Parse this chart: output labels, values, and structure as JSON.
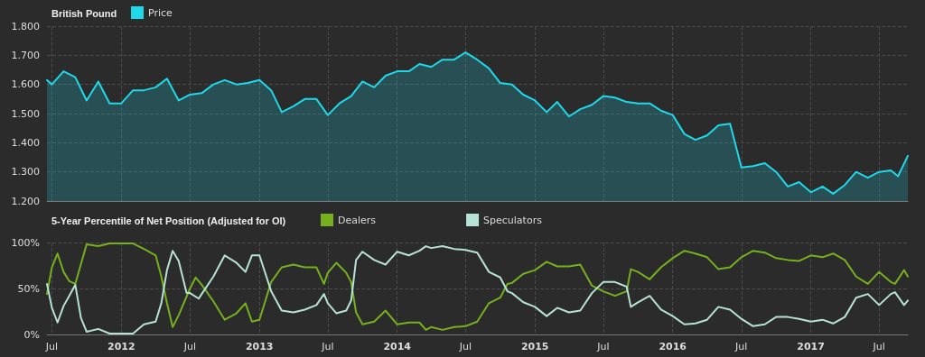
{
  "chart_data": [
    {
      "type": "area",
      "title": "British Pound",
      "legend": "top left",
      "grid": true,
      "marker": "none",
      "line_style": "solid",
      "tick_labels": "y",
      "xlim": [
        "2011-06-18",
        "2017-09-15"
      ],
      "xticks": [
        {
          "value": "2011-07-01",
          "label": null
        },
        {
          "value": "2012-01-01",
          "label": null
        },
        {
          "value": "2012-07-01",
          "label": null
        },
        {
          "value": "2013-01-01",
          "label": null
        },
        {
          "value": "2013-07-01",
          "label": null
        },
        {
          "value": "2014-01-01",
          "label": null
        },
        {
          "value": "2014-07-01",
          "label": null
        },
        {
          "value": "2015-01-01",
          "label": null
        },
        {
          "value": "2015-07-01",
          "label": null
        },
        {
          "value": "2016-01-01",
          "label": null
        },
        {
          "value": "2016-07-01",
          "label": null
        },
        {
          "value": "2017-01-01",
          "label": null
        },
        {
          "value": "2017-07-01",
          "label": null
        }
      ],
      "ylim": [
        1.2,
        1.8
      ],
      "yticks": [
        {
          "value": 1.2,
          "label": "1.200"
        },
        {
          "value": 1.3,
          "label": "1.300"
        },
        {
          "value": 1.4,
          "label": "1.400"
        },
        {
          "value": 1.5,
          "label": "1.500"
        },
        {
          "value": 1.6,
          "label": "1.600"
        },
        {
          "value": 1.7,
          "label": "1.700"
        },
        {
          "value": 1.8,
          "label": "1.800"
        }
      ],
      "series": [
        {
          "name": "Price",
          "color": "#1fd8ea",
          "x": [
            "2011-06-18",
            "2011-07-01",
            "2011-08-01",
            "2011-09-01",
            "2011-10-01",
            "2011-11-01",
            "2011-12-01",
            "2012-01-01",
            "2012-02-01",
            "2012-03-01",
            "2012-04-01",
            "2012-05-01",
            "2012-06-01",
            "2012-07-01",
            "2012-08-01",
            "2012-09-01",
            "2012-10-01",
            "2012-11-01",
            "2012-12-01",
            "2013-01-01",
            "2013-02-01",
            "2013-03-01",
            "2013-04-01",
            "2013-05-01",
            "2013-06-01",
            "2013-07-01",
            "2013-08-01",
            "2013-09-01",
            "2013-10-01",
            "2013-11-01",
            "2013-12-01",
            "2014-01-01",
            "2014-02-01",
            "2014-03-01",
            "2014-04-01",
            "2014-05-01",
            "2014-06-01",
            "2014-07-01",
            "2014-08-01",
            "2014-09-01",
            "2014-10-01",
            "2014-11-01",
            "2014-12-01",
            "2015-01-01",
            "2015-02-01",
            "2015-03-01",
            "2015-04-01",
            "2015-05-01",
            "2015-06-01",
            "2015-07-01",
            "2015-08-01",
            "2015-09-01",
            "2015-10-01",
            "2015-11-01",
            "2015-12-01",
            "2016-01-01",
            "2016-02-01",
            "2016-03-01",
            "2016-04-01",
            "2016-05-01",
            "2016-06-01",
            "2016-07-01",
            "2016-08-01",
            "2016-09-01",
            "2016-10-01",
            "2016-11-01",
            "2016-12-01",
            "2017-01-01",
            "2017-02-01",
            "2017-03-01",
            "2017-04-01",
            "2017-05-01",
            "2017-06-01",
            "2017-07-01",
            "2017-08-01",
            "2017-08-20",
            "2017-09-15"
          ],
          "values": [
            1.615,
            1.6,
            1.645,
            1.625,
            1.545,
            1.61,
            1.535,
            1.535,
            1.58,
            1.58,
            1.59,
            1.62,
            1.545,
            1.565,
            1.57,
            1.6,
            1.615,
            1.6,
            1.605,
            1.615,
            1.58,
            1.505,
            1.525,
            1.55,
            1.55,
            1.495,
            1.535,
            1.56,
            1.61,
            1.59,
            1.63,
            1.645,
            1.645,
            1.67,
            1.66,
            1.685,
            1.685,
            1.71,
            1.685,
            1.655,
            1.605,
            1.6,
            1.565,
            1.545,
            1.505,
            1.54,
            1.49,
            1.515,
            1.53,
            1.56,
            1.555,
            1.54,
            1.535,
            1.535,
            1.51,
            1.495,
            1.43,
            1.41,
            1.425,
            1.46,
            1.465,
            1.315,
            1.32,
            1.33,
            1.3,
            1.25,
            1.265,
            1.23,
            1.25,
            1.225,
            1.255,
            1.3,
            1.28,
            1.3,
            1.305,
            1.285,
            1.355
          ]
        }
      ]
    },
    {
      "type": "line",
      "title": "5-Year Percentile of Net Position (Adjusted for OI)",
      "legend": "top left",
      "grid": true,
      "marker": "none",
      "line_style": "solid",
      "xlim": [
        "2011-06-18",
        "2017-09-15"
      ],
      "xticks": [
        {
          "value": "2011-07-01",
          "label": "Jul"
        },
        {
          "value": "2012-01-01",
          "label": "2012"
        },
        {
          "value": "2012-07-01",
          "label": "Jul"
        },
        {
          "value": "2013-01-01",
          "label": "2013"
        },
        {
          "value": "2013-07-01",
          "label": "Jul"
        },
        {
          "value": "2014-01-01",
          "label": "2014"
        },
        {
          "value": "2014-07-01",
          "label": "Jul"
        },
        {
          "value": "2015-01-01",
          "label": "2015"
        },
        {
          "value": "2015-07-01",
          "label": "Jul"
        },
        {
          "value": "2016-01-01",
          "label": "2016"
        },
        {
          "value": "2016-07-01",
          "label": "Jul"
        },
        {
          "value": "2017-01-01",
          "label": "2017"
        },
        {
          "value": "2017-07-01",
          "label": "Jul"
        }
      ],
      "ylim": [
        0,
        100
      ],
      "yticks": [
        {
          "value": 0,
          "label": "0%"
        },
        {
          "value": 50,
          "label": "50%"
        },
        {
          "value": 100,
          "label": "100%"
        }
      ],
      "series": [
        {
          "name": "Dealers",
          "color": "#76b01e",
          "x": [
            "2011-06-18",
            "2011-07-01",
            "2011-07-16",
            "2011-08-01",
            "2011-08-16",
            "2011-09-01",
            "2011-10-01",
            "2011-11-01",
            "2011-12-01",
            "2012-01-01",
            "2012-02-01",
            "2012-03-01",
            "2012-04-01",
            "2012-04-16",
            "2012-05-01",
            "2012-05-16",
            "2012-06-01",
            "2012-07-01",
            "2012-07-16",
            "2012-08-01",
            "2012-09-01",
            "2012-10-01",
            "2012-11-01",
            "2012-11-25",
            "2012-12-12",
            "2013-01-01",
            "2013-02-01",
            "2013-03-01",
            "2013-04-01",
            "2013-05-01",
            "2013-06-01",
            "2013-06-21",
            "2013-07-01",
            "2013-07-24",
            "2013-08-19",
            "2013-09-01",
            "2013-09-14",
            "2013-10-01",
            "2013-11-01",
            "2013-12-01",
            "2014-01-01",
            "2014-02-01",
            "2014-03-01",
            "2014-03-18",
            "2014-04-01",
            "2014-05-01",
            "2014-06-01",
            "2014-07-01",
            "2014-08-01",
            "2014-09-01",
            "2014-10-01",
            "2014-10-20",
            "2014-11-01",
            "2014-12-01",
            "2015-01-01",
            "2015-02-01",
            "2015-03-01",
            "2015-04-01",
            "2015-05-01",
            "2015-06-01",
            "2015-07-01",
            "2015-08-01",
            "2015-09-01",
            "2015-09-12",
            "2015-10-01",
            "2015-11-01",
            "2015-12-01",
            "2016-01-01",
            "2016-02-01",
            "2016-03-01",
            "2016-04-01",
            "2016-05-01",
            "2016-06-01",
            "2016-07-01",
            "2016-08-01",
            "2016-09-01",
            "2016-10-01",
            "2016-11-01",
            "2016-12-01",
            "2017-01-01",
            "2017-02-01",
            "2017-03-01",
            "2017-04-01",
            "2017-05-01",
            "2017-06-01",
            "2017-07-01",
            "2017-08-01",
            "2017-08-12",
            "2017-09-05",
            "2017-09-15"
          ],
          "values": [
            44,
            73,
            88,
            68,
            58,
            55,
            98,
            96,
            99,
            99,
            99,
            93,
            86,
            63,
            34,
            8,
            21,
            50,
            62,
            54,
            36,
            16,
            23,
            34,
            14,
            16,
            57,
            73,
            76,
            73,
            73,
            55,
            67,
            78,
            67,
            57,
            24,
            11,
            14,
            26,
            11,
            13,
            13,
            5,
            8,
            5,
            8,
            9,
            14,
            34,
            40,
            55,
            56,
            66,
            70,
            79,
            74,
            74,
            76,
            53,
            47,
            42,
            47,
            71,
            68,
            60,
            73,
            83,
            91,
            88,
            84,
            71,
            73,
            84,
            91,
            89,
            83,
            81,
            80,
            86,
            84,
            88,
            81,
            63,
            55,
            68,
            57,
            55,
            70,
            63
          ]
        },
        {
          "name": "Speculators",
          "color": "#b7e3d6",
          "x": [
            "2011-06-18",
            "2011-07-01",
            "2011-07-16",
            "2011-08-01",
            "2011-08-16",
            "2011-09-01",
            "2011-09-16",
            "2011-10-01",
            "2011-11-01",
            "2011-12-01",
            "2012-01-01",
            "2012-02-01",
            "2012-03-01",
            "2012-04-01",
            "2012-04-16",
            "2012-05-01",
            "2012-05-16",
            "2012-06-01",
            "2012-06-22",
            "2012-07-01",
            "2012-07-24",
            "2012-08-01",
            "2012-09-01",
            "2012-10-01",
            "2012-11-01",
            "2012-11-25",
            "2012-12-12",
            "2013-01-01",
            "2013-02-01",
            "2013-03-01",
            "2013-04-01",
            "2013-05-01",
            "2013-06-01",
            "2013-06-21",
            "2013-07-01",
            "2013-07-24",
            "2013-08-19",
            "2013-09-01",
            "2013-09-14",
            "2013-10-01",
            "2013-11-01",
            "2013-12-01",
            "2014-01-01",
            "2014-02-01",
            "2014-03-01",
            "2014-03-18",
            "2014-04-01",
            "2014-05-01",
            "2014-06-01",
            "2014-07-01",
            "2014-08-01",
            "2014-09-01",
            "2014-10-01",
            "2014-10-20",
            "2014-11-01",
            "2014-12-01",
            "2015-01-01",
            "2015-02-01",
            "2015-03-01",
            "2015-04-01",
            "2015-05-01",
            "2015-06-01",
            "2015-07-01",
            "2015-08-01",
            "2015-09-01",
            "2015-09-12",
            "2015-10-01",
            "2015-11-01",
            "2015-12-01",
            "2016-01-01",
            "2016-02-01",
            "2016-03-01",
            "2016-04-01",
            "2016-05-01",
            "2016-06-01",
            "2016-07-01",
            "2016-08-01",
            "2016-09-01",
            "2016-10-01",
            "2016-11-01",
            "2016-12-01",
            "2017-01-01",
            "2017-02-01",
            "2017-03-01",
            "2017-04-01",
            "2017-05-01",
            "2017-06-01",
            "2017-07-01",
            "2017-08-01",
            "2017-08-12",
            "2017-09-05",
            "2017-09-15"
          ],
          "values": [
            55,
            29,
            13,
            31,
            42,
            54,
            18,
            3,
            6,
            1,
            1,
            1,
            11,
            14,
            34,
            70,
            91,
            80,
            45,
            45,
            39,
            44,
            63,
            86,
            78,
            68,
            86,
            86,
            47,
            26,
            24,
            27,
            32,
            44,
            34,
            23,
            26,
            37,
            81,
            90,
            81,
            76,
            90,
            86,
            91,
            96,
            94,
            96,
            93,
            92,
            89,
            68,
            62,
            47,
            45,
            35,
            30,
            20,
            29,
            24,
            26,
            45,
            57,
            57,
            52,
            30,
            35,
            42,
            27,
            20,
            11,
            12,
            16,
            30,
            27,
            17,
            9,
            11,
            19,
            19,
            17,
            14,
            16,
            12,
            19,
            40,
            44,
            32,
            44,
            46,
            32,
            37
          ]
        }
      ]
    }
  ]
}
